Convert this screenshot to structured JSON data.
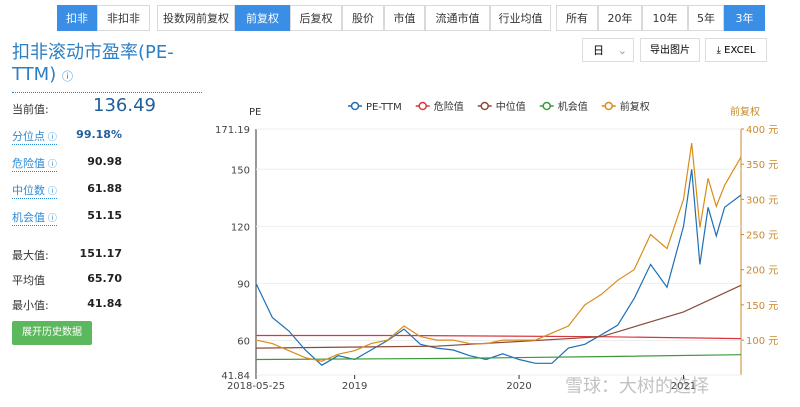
{
  "toolbar": {
    "groups": [
      {
        "items": [
          "扣非",
          "非扣非"
        ],
        "active": 0
      },
      {
        "items": [
          "投数网前复权",
          "前复权",
          "后复权",
          "股价",
          "市值",
          "流通市值",
          "行业均值"
        ],
        "active": 1
      },
      {
        "items": [
          "所有",
          "20年",
          "10年",
          "5年",
          "3年"
        ],
        "active": 4
      }
    ]
  },
  "header": {
    "title": "扣非滚动市盈率(PE-TTM)",
    "period": "日",
    "export_image": "导出图片",
    "excel": "EXCEL"
  },
  "stats": {
    "current_label": "当前值:",
    "current_value": "136.49",
    "rows": [
      {
        "label": "分位点",
        "value": "99.18%",
        "help": true
      },
      {
        "label": "危险值",
        "value": "90.98",
        "help": true
      },
      {
        "label": "中位数",
        "value": "61.88",
        "help": true
      },
      {
        "label": "机会值",
        "value": "51.15",
        "help": true
      },
      {
        "label": "最大值:",
        "value": "151.17",
        "help": false
      },
      {
        "label": "平均值",
        "value": "65.70",
        "help": false
      },
      {
        "label": "最小值:",
        "value": "41.84",
        "help": false
      }
    ]
  },
  "button": "展开历史数据",
  "watermark": "雪球：大树的选择",
  "chart_data": {
    "type": "line",
    "y_label": "PE",
    "y2_label": "前复权",
    "xlim": [
      2018.4,
      2021.35
    ],
    "xticks": [
      {
        "value": 2018.4,
        "label": "2018-05-25"
      },
      2019,
      2020,
      2021
    ],
    "ylim": [
      41.84,
      171.19
    ],
    "yticks": [
      41.84,
      60,
      90,
      120,
      150,
      171.19
    ],
    "y2lim": [
      50.4,
      400
    ],
    "y2ticks": [
      {
        "value": 100,
        "label": "100 元"
      },
      {
        "value": 150,
        "label": "150 元"
      },
      {
        "value": 200,
        "label": "200 元"
      },
      {
        "value": 250,
        "label": "250 元"
      },
      {
        "value": 300,
        "label": "300 元"
      },
      {
        "value": 350,
        "label": "350 元"
      },
      {
        "value": 400,
        "label": "400 元"
      }
    ],
    "grid": true,
    "series": [
      {
        "name": "PE-TTM",
        "color": "#1f6fb5",
        "x": [
          2018.4,
          2018.5,
          2018.6,
          2018.7,
          2018.8,
          2018.9,
          2019.0,
          2019.1,
          2019.2,
          2019.3,
          2019.4,
          2019.5,
          2019.6,
          2019.7,
          2019.8,
          2019.9,
          2020.0,
          2020.1,
          2020.2,
          2020.3,
          2020.4,
          2020.5,
          2020.6,
          2020.7,
          2020.8,
          2020.9,
          2021.0,
          2021.05,
          2021.1,
          2021.15,
          2021.2,
          2021.25,
          2021.35
        ],
        "values": [
          90,
          72,
          65,
          55,
          47,
          52,
          50,
          55,
          60,
          66,
          58,
          56,
          55,
          52,
          50,
          53,
          50,
          48,
          48,
          56,
          58,
          63,
          68,
          82,
          100,
          88,
          120,
          150,
          100,
          130,
          115,
          130,
          136.49
        ]
      },
      {
        "name": "危险值",
        "color": "#d9363e",
        "x": [
          2018.4,
          2019.3,
          2020.5,
          2021.35
        ],
        "values": [
          62.6,
          62.6,
          62,
          61
        ]
      },
      {
        "name": "中位值",
        "color": "#8b4a3a",
        "x": [
          2018.4,
          2019.5,
          2020.5,
          2021.0,
          2021.35
        ],
        "values": [
          56,
          57,
          62,
          75,
          89
        ]
      },
      {
        "name": "机会值",
        "color": "#3a9a3a",
        "x": [
          2018.4,
          2019.5,
          2020.5,
          2021.35
        ],
        "values": [
          50,
          50.5,
          51.5,
          52.5
        ]
      },
      {
        "name": "前复权",
        "color": "#d98c1a",
        "axis": "y2",
        "x": [
          2018.4,
          2018.5,
          2018.6,
          2018.7,
          2018.8,
          2018.9,
          2019.0,
          2019.1,
          2019.2,
          2019.3,
          2019.4,
          2019.5,
          2019.6,
          2019.7,
          2019.8,
          2019.9,
          2020.0,
          2020.1,
          2020.2,
          2020.3,
          2020.4,
          2020.5,
          2020.6,
          2020.7,
          2020.8,
          2020.9,
          2021.0,
          2021.05,
          2021.1,
          2021.15,
          2021.2,
          2021.25,
          2021.35
        ],
        "values": [
          100,
          95,
          85,
          75,
          70,
          80,
          85,
          95,
          100,
          120,
          105,
          100,
          100,
          95,
          95,
          100,
          100,
          100,
          110,
          120,
          150,
          165,
          185,
          200,
          250,
          230,
          300,
          380,
          260,
          330,
          290,
          320,
          360
        ]
      }
    ]
  }
}
